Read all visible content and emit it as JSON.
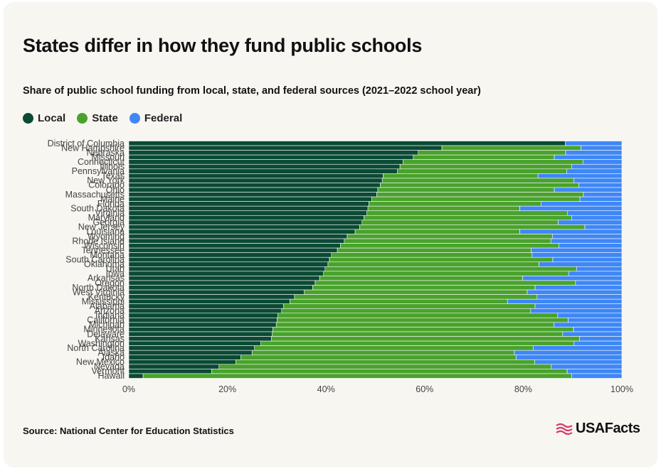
{
  "header": {
    "title": "States differ in how they fund public schools",
    "subtitle": "Share of public school funding from local, state, and federal sources (2021–2022 school year)"
  },
  "legend": [
    {
      "label": "Local",
      "color": "#0b4a35"
    },
    {
      "label": "State",
      "color": "#4aa22d"
    },
    {
      "label": "Federal",
      "color": "#3f87f5"
    }
  ],
  "footer": {
    "source": "Source: National Center for Education Statistics",
    "logo_text": "USAFacts",
    "logo_icon": "us-flag-stripes-icon"
  },
  "chart_data": {
    "type": "bar",
    "orientation": "horizontal",
    "stacked": "100%",
    "xlim": [
      0,
      100
    ],
    "x_ticks": [
      "0%",
      "20%",
      "40%",
      "60%",
      "80%",
      "100%"
    ],
    "categories": [
      "District of Columbia",
      "New Hampshire",
      "Nebraska",
      "Missouri",
      "Connecticut",
      "Illinois",
      "Pennsylvania",
      "Texas",
      "New York",
      "Colorado",
      "Ohio",
      "Massachusetts",
      "Maine",
      "Florida",
      "South Dakota",
      "Virginia",
      "Maryland",
      "Georgia",
      "New Jersey",
      "Louisiana",
      "Wyoming",
      "Rhode Island",
      "Wisconsin",
      "Tennessee",
      "Montana",
      "South Carolina",
      "Oklahoma",
      "Utah",
      "Iowa",
      "Arkansas",
      "Oregon",
      "North Dakota",
      "West Virginia",
      "Kentucky",
      "Mississippi",
      "Alabama",
      "Arizona",
      "Indiana",
      "California",
      "Michigan",
      "Minnesota",
      "Delaware",
      "Kansas",
      "Washington",
      "North Carolina",
      "Alaska",
      "Idaho",
      "New Mexico",
      "Nevada",
      "Vermont",
      "Hawaii"
    ],
    "series": [
      {
        "name": "Local",
        "color": "#0b4a35",
        "values": [
          88.5,
          63.5,
          58.7,
          57.7,
          55.6,
          55,
          54.5,
          51.6,
          51.4,
          51,
          50.5,
          50.3,
          49.3,
          48.7,
          48.5,
          48.3,
          47.7,
          47.3,
          46.8,
          45.9,
          44.3,
          43.7,
          42.9,
          42.3,
          41.1,
          40.7,
          40.4,
          39.8,
          39.5,
          38.7,
          37.8,
          37.3,
          35.6,
          33.6,
          32.7,
          31.4,
          31,
          30.2,
          30.1,
          29.9,
          29.2,
          29.1,
          28.9,
          26.8,
          25.5,
          25,
          22.7,
          21.7,
          18.3,
          16.8,
          2.9
        ]
      },
      {
        "name": "State",
        "color": "#4aa22d",
        "values": [
          0,
          28.2,
          29.9,
          28.6,
          36.5,
          34.8,
          34.3,
          31.4,
          38.9,
          40.3,
          35.8,
          41.9,
          42.2,
          34.9,
          30.8,
          40.7,
          42.1,
          39.8,
          45.7,
          33.4,
          41.6,
          41.9,
          44.3,
          39.3,
          40.7,
          45.3,
          42.8,
          51,
          49.7,
          41.2,
          52.8,
          45.1,
          45.2,
          49.2,
          44.1,
          51,
          50.5,
          56.8,
          59,
          56.3,
          61,
          58.9,
          62.5,
          63.5,
          56.5,
          53.2,
          55.9,
          60.6,
          67.4,
          72.1,
          86.9
        ]
      },
      {
        "name": "Federal",
        "color": "#3f87f5",
        "values": [
          11.5,
          8.3,
          11.4,
          13.7,
          7.9,
          10.2,
          11.2,
          17,
          9.7,
          8.7,
          13.7,
          7.8,
          8.5,
          16.4,
          20.7,
          11,
          10.2,
          12.9,
          7.5,
          20.7,
          14.1,
          14.4,
          12.8,
          18.4,
          18.2,
          14,
          16.8,
          9.2,
          10.8,
          20.1,
          9.4,
          17.6,
          19.2,
          17.2,
          23.2,
          17.6,
          18.5,
          13,
          10.9,
          13.8,
          9.8,
          12,
          8.6,
          9.7,
          18,
          21.8,
          21.4,
          17.7,
          14.3,
          11.1,
          10.2
        ]
      }
    ]
  }
}
